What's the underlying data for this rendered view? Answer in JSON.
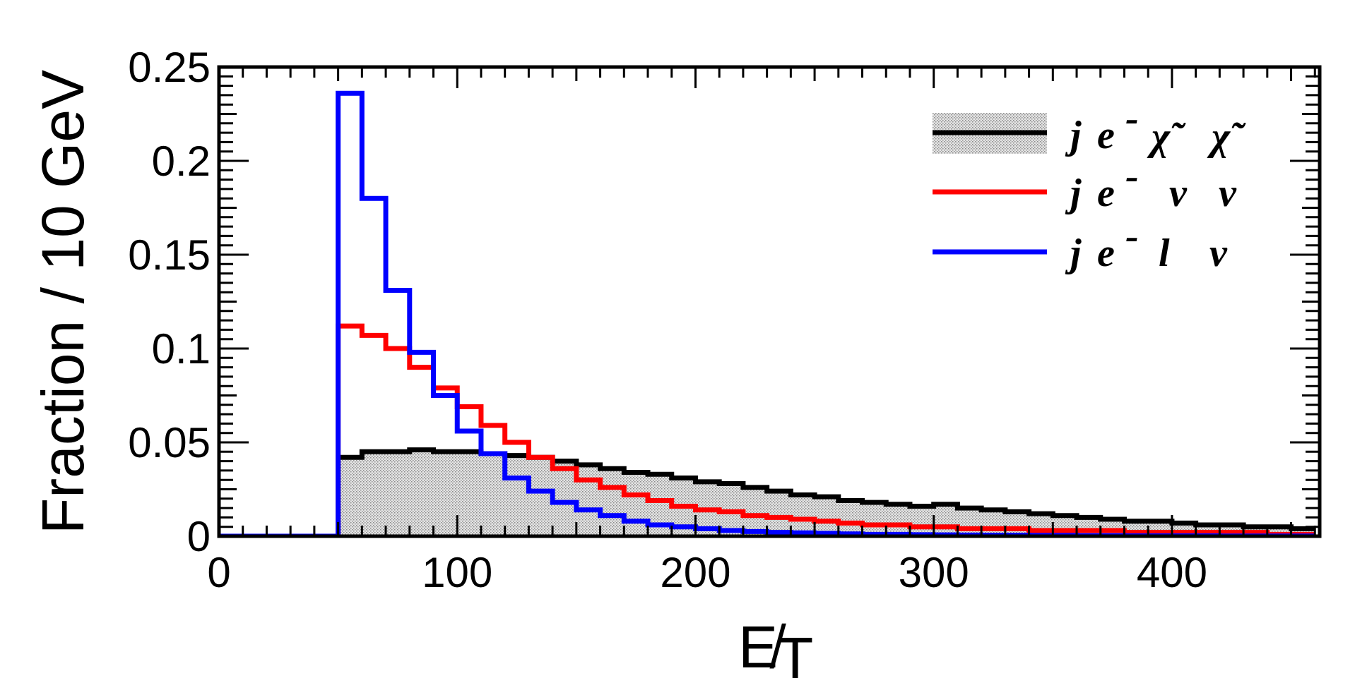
{
  "chart_data": {
    "type": "line",
    "style": "step-histogram",
    "xlabel": "E̸",
    "xlabel_sub": "T",
    "ylabel": "Fraction / 10 GeV",
    "xlim": [
      0,
      462
    ],
    "ylim": [
      0,
      0.25
    ],
    "bin_width": 10,
    "x_ticks": [
      0,
      100,
      200,
      300,
      400
    ],
    "x_tick_labels": [
      "0",
      "100",
      "200",
      "300",
      "400"
    ],
    "y_ticks": [
      0,
      0.05,
      0.1,
      0.15,
      0.2,
      0.25
    ],
    "y_tick_labels": [
      "0",
      "0.05",
      "0.1",
      "0.15",
      "0.2",
      "0.25"
    ],
    "legend_position": "top-right",
    "bin_edges": [
      0,
      10,
      20,
      30,
      40,
      50,
      60,
      70,
      80,
      90,
      100,
      110,
      120,
      130,
      140,
      150,
      160,
      170,
      180,
      190,
      200,
      210,
      220,
      230,
      240,
      250,
      260,
      270,
      280,
      290,
      300,
      310,
      320,
      330,
      340,
      350,
      360,
      370,
      380,
      390,
      400,
      410,
      420,
      430,
      440,
      450,
      460
    ],
    "series": [
      {
        "name": "j e⁻ χ̃ χ̃",
        "color": "#000000",
        "fill": "#d8d8d8",
        "values": [
          0,
          0,
          0,
          0,
          0,
          0.042,
          0.045,
          0.045,
          0.046,
          0.045,
          0.045,
          0.044,
          0.043,
          0.042,
          0.04,
          0.038,
          0.036,
          0.034,
          0.033,
          0.031,
          0.029,
          0.028,
          0.026,
          0.024,
          0.022,
          0.021,
          0.019,
          0.018,
          0.017,
          0.016,
          0.017,
          0.015,
          0.014,
          0.013,
          0.012,
          0.011,
          0.01,
          0.009,
          0.008,
          0.008,
          0.007,
          0.006,
          0.006,
          0.005,
          0.005,
          0.004
        ]
      },
      {
        "name": "j e⁻ ν ν",
        "color": "#ff0000",
        "values": [
          0,
          0,
          0,
          0,
          0,
          0.112,
          0.107,
          0.1,
          0.09,
          0.079,
          0.069,
          0.059,
          0.05,
          0.042,
          0.036,
          0.03,
          0.026,
          0.022,
          0.019,
          0.016,
          0.014,
          0.013,
          0.011,
          0.01,
          0.009,
          0.008,
          0.007,
          0.006,
          0.006,
          0.005,
          0.005,
          0.004,
          0.004,
          0.004,
          0.003,
          0.003,
          0.003,
          0.003,
          0.002,
          0.002,
          0.002,
          0.002,
          0.002,
          0.002,
          0.001,
          0.001
        ]
      },
      {
        "name": "j e⁻ l ν",
        "color": "#0000ff",
        "values": [
          0,
          0,
          0,
          0,
          0,
          0.236,
          0.18,
          0.131,
          0.098,
          0.075,
          0.056,
          0.044,
          0.031,
          0.024,
          0.018,
          0.014,
          0.011,
          0.008,
          0.006,
          0.005,
          0.004,
          0.003,
          0.0025,
          0.002,
          0.0018,
          0.0015,
          0.0012,
          0.001,
          0.001,
          0.0008,
          0.0007,
          0.0006,
          0.0005,
          0.0005,
          0.0004,
          0.0004,
          0.0003,
          0.0003,
          0.0002,
          0.0002,
          0.0002,
          0.0002,
          0.0001,
          0.0001,
          0.0001,
          0.0001
        ]
      }
    ],
    "legend": [
      {
        "parts": [
          "j",
          "e",
          "-",
          "χ̃",
          "χ̃"
        ]
      },
      {
        "parts": [
          "j",
          "e",
          "-",
          "ν",
          "ν"
        ]
      },
      {
        "parts": [
          "j",
          "e",
          "-",
          "l",
          "ν"
        ]
      }
    ]
  }
}
